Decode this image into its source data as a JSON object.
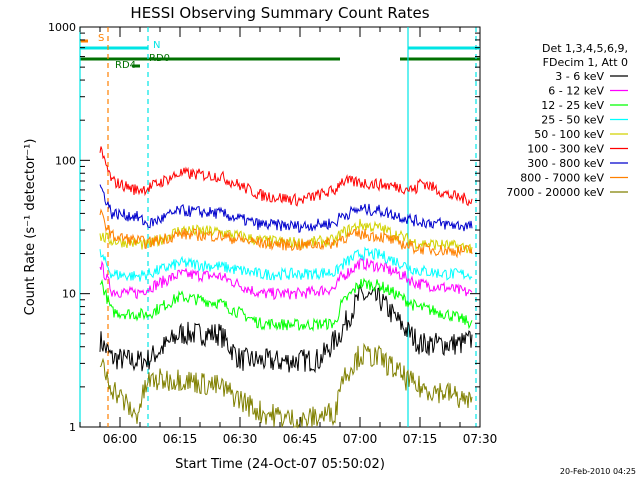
{
  "chart_data": {
    "type": "line",
    "title": "HESSI Observing Summary Count Rates",
    "xlabel": "Start Time (24-Oct-07 05:50:02)",
    "ylabel": "Count Rate (s⁻¹ detector⁻¹)",
    "y_scale": "log",
    "ylim": [
      1,
      1000
    ],
    "xlim": [
      "05:50",
      "07:30"
    ],
    "x_ticks": [
      "06:00",
      "06:15",
      "06:30",
      "06:45",
      "07:00",
      "07:15",
      "07:30"
    ],
    "y_ticks": [
      "1",
      "10",
      "100",
      "1000"
    ],
    "footer": "20-Feb-2010 04:25",
    "legend": {
      "placement": "right",
      "header": [
        "Det 1,3,4,5,6,9,",
        "FDecim 1, Att 0"
      ]
    },
    "flags": [
      {
        "label": "S",
        "color": "#ff8000",
        "segments": [
          [
            "05:50",
            "05:52"
          ]
        ]
      },
      {
        "label": "N",
        "color": "#00e5e5",
        "segments": [
          [
            "05:50",
            "06:07"
          ],
          [
            "07:12",
            "07:30"
          ]
        ]
      },
      {
        "label": "RD0",
        "color": "#007000",
        "segments": [
          [
            "05:50",
            "06:07"
          ],
          [
            "06:07",
            "06:55"
          ],
          [
            "07:10",
            "07:30"
          ]
        ]
      },
      {
        "label": "RD4",
        "color": "#007000",
        "segments": [
          [
            "06:03",
            "06:05"
          ]
        ]
      }
    ],
    "vlines": [
      {
        "time": "05:50",
        "color": "#00e5e5",
        "style": "solid"
      },
      {
        "time": "05:57",
        "color": "#ff8000",
        "style": "dashed"
      },
      {
        "time": "06:07",
        "color": "#00e5e5",
        "style": "dashed"
      },
      {
        "time": "07:12",
        "color": "#00e5e5",
        "style": "solid"
      },
      {
        "time": "07:29",
        "color": "#00e5e5",
        "style": "dashed"
      }
    ],
    "series": [
      {
        "name": "3 - 6 keV",
        "color": "#000000",
        "x": [
          "05:55",
          "05:58",
          "06:04",
          "06:07",
          "06:15",
          "06:25",
          "06:30",
          "06:40",
          "06:50",
          "06:55",
          "07:00",
          "07:05",
          "07:10",
          "07:15",
          "07:25",
          "07:28"
        ],
        "values": [
          4.5,
          3.3,
          3.1,
          3.2,
          5.0,
          5.0,
          3.2,
          3.1,
          3.2,
          5.0,
          9.7,
          9.0,
          6.0,
          4.2,
          4.2,
          4.5
        ]
      },
      {
        "name": "6 - 12 keV",
        "color": "#ff00ff",
        "x": [
          "05:55",
          "05:58",
          "06:04",
          "06:07",
          "06:15",
          "06:25",
          "06:35",
          "06:45",
          "06:54",
          "06:55",
          "07:00",
          "07:05",
          "07:10",
          "07:14",
          "07:22",
          "07:28"
        ],
        "values": [
          17,
          10.5,
          10,
          11,
          14,
          13.5,
          10,
          10,
          11,
          13,
          17,
          16,
          14,
          12,
          11,
          10
        ]
      },
      {
        "name": "12 - 25 keV",
        "color": "#00ff00",
        "x": [
          "05:55",
          "05:58",
          "06:04",
          "06:07",
          "06:15",
          "06:25",
          "06:35",
          "06:45",
          "06:54",
          "06:55",
          "07:00",
          "07:05",
          "07:10",
          "07:14",
          "07:22",
          "07:28"
        ],
        "values": [
          13,
          7.3,
          7.0,
          7.0,
          9.5,
          8.5,
          6.0,
          5.8,
          6.0,
          8.0,
          12,
          11.5,
          9.5,
          8,
          7,
          6
        ]
      },
      {
        "name": "25 - 50 keV",
        "color": "#00ffff",
        "x": [
          "05:55",
          "05:58",
          "06:04",
          "06:07",
          "06:15",
          "06:25",
          "06:35",
          "06:45",
          "06:54",
          "06:55",
          "07:00",
          "07:05",
          "07:10",
          "07:14",
          "07:22",
          "07:28"
        ],
        "values": [
          20,
          14,
          13.5,
          14,
          17,
          16,
          14,
          14,
          14.5,
          16,
          20,
          19.5,
          17,
          15,
          14,
          14
        ]
      },
      {
        "name": "50 - 100 keV",
        "color": "#d2d200",
        "x": [
          "05:55",
          "05:58",
          "06:04",
          "06:07",
          "06:15",
          "06:25",
          "06:35",
          "06:45",
          "06:54",
          "06:55",
          "07:00",
          "07:05",
          "07:10",
          "07:14",
          "07:22",
          "07:28"
        ],
        "values": [
          27,
          25,
          24,
          23,
          30,
          29,
          25,
          24,
          25,
          28,
          33,
          31,
          27,
          24,
          23,
          22
        ]
      },
      {
        "name": "100 - 300 keV",
        "color": "#ff0000",
        "x": [
          "05:55",
          "05:58",
          "06:04",
          "06:07",
          "06:15",
          "06:25",
          "06:35",
          "06:45",
          "06:54",
          "06:55",
          "07:00",
          "07:05",
          "07:10",
          "07:14",
          "07:15",
          "07:22",
          "07:28"
        ],
        "values": [
          120,
          70,
          60,
          62,
          80,
          76,
          55,
          50,
          60,
          70,
          68,
          66,
          63,
          60,
          70,
          55,
          50
        ]
      },
      {
        "name": "300 - 800 keV",
        "color": "#0000cc",
        "x": [
          "05:55",
          "05:58",
          "06:04",
          "06:07",
          "06:15",
          "06:25",
          "06:35",
          "06:45",
          "06:54",
          "06:55",
          "07:00",
          "07:05",
          "07:10",
          "07:14",
          "07:22",
          "07:28"
        ],
        "values": [
          65,
          40,
          38,
          33,
          42,
          40,
          33,
          32,
          34,
          38,
          43,
          42,
          38,
          35,
          33,
          32
        ]
      },
      {
        "name": "800 - 7000 keV",
        "color": "#ff8000",
        "x": [
          "05:55",
          "05:58",
          "06:04",
          "06:07",
          "06:15",
          "06:25",
          "06:35",
          "06:45",
          "06:54",
          "06:55",
          "07:00",
          "07:05",
          "07:10",
          "07:14",
          "07:22",
          "07:28"
        ],
        "values": [
          40,
          27,
          25,
          24,
          28,
          27,
          24,
          23,
          24,
          26,
          28,
          27,
          24,
          22,
          21,
          21
        ]
      },
      {
        "name": "7000 - 20000 keV",
        "color": "#808000",
        "x": [
          "05:55",
          "05:58",
          "06:04",
          "06:07",
          "06:15",
          "06:25",
          "06:35",
          "06:45",
          "06:54",
          "06:55",
          "07:00",
          "07:05",
          "07:10",
          "07:14",
          "07:22",
          "07:28"
        ],
        "values": [
          3.0,
          2.0,
          1.2,
          2.2,
          2.3,
          2.0,
          1.3,
          1.1,
          1.3,
          2.2,
          3.5,
          3.3,
          2.5,
          2.0,
          1.8,
          1.5
        ]
      }
    ]
  }
}
